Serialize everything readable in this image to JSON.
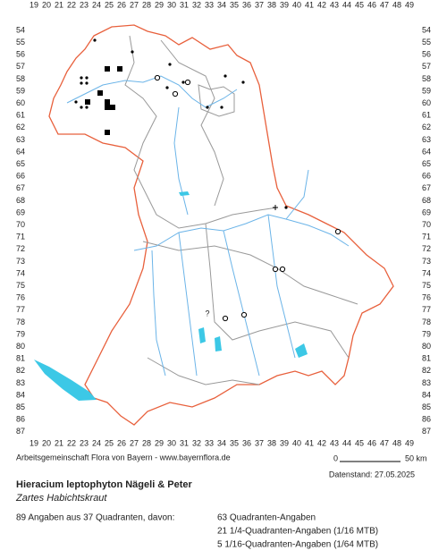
{
  "grid": {
    "columns": [
      19,
      20,
      21,
      22,
      23,
      24,
      25,
      26,
      27,
      28,
      29,
      30,
      31,
      32,
      33,
      34,
      35,
      36,
      37,
      38,
      39,
      40,
      41,
      42,
      43,
      44,
      45,
      46,
      47,
      48,
      49
    ],
    "rows": [
      54,
      55,
      56,
      57,
      58,
      59,
      60,
      61,
      62,
      63,
      64,
      65,
      66,
      67,
      68,
      69,
      70,
      71,
      72,
      73,
      74,
      75,
      76,
      77,
      78,
      79,
      80,
      81,
      82,
      83,
      84,
      85,
      86,
      87
    ]
  },
  "credit": "Arbeitsgemeinschaft Flora von Bayern - www.bayernflora.de",
  "scale": {
    "start": "0",
    "end": "50 km"
  },
  "data_date": "Datenstand: 27.05.2025",
  "species": {
    "scientific_name": "Hieracium leptophyton Nägeli & Peter",
    "common_name": "Zartes Habichtskraut"
  },
  "summary": {
    "total": "89 Angaben aus 37 Quadranten, davon:",
    "breakdown": [
      "63 Quadranten-Angaben",
      "21 1/4-Quadranten-Angaben (1/16 MTB)",
      "5 1/16-Quadranten-Angaben (1/64 MTB)"
    ]
  }
}
